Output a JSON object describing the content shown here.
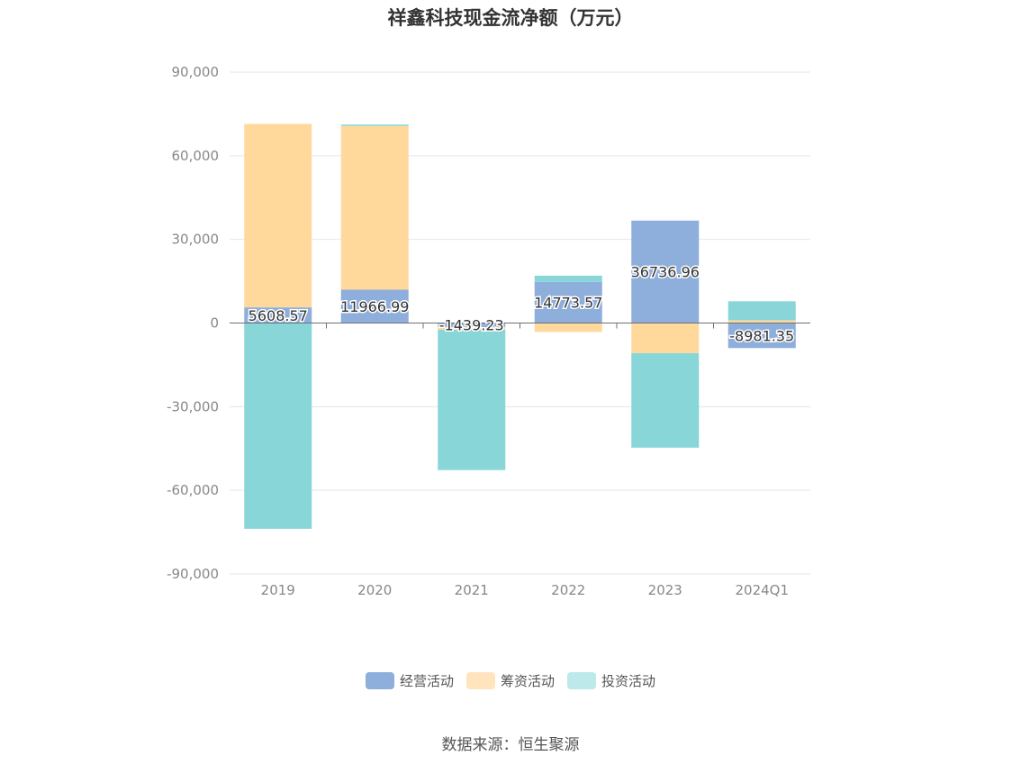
{
  "chart_data": {
    "type": "bar",
    "stacked": true,
    "title": "祥鑫科技现金流净额（万元）",
    "categories": [
      "2019",
      "2020",
      "2021",
      "2022",
      "2023",
      "2024Q1"
    ],
    "series": [
      {
        "name": "经营活动",
        "color": "#8eaedb",
        "values": [
          5608.57,
          11966.99,
          -1439.23,
          14773.57,
          36736.96,
          -8981.35
        ]
      },
      {
        "name": "筹资活动",
        "color": "#ffd99c",
        "values": [
          65800,
          58700,
          -1000,
          -3200,
          -10800,
          1000
        ]
      },
      {
        "name": "投资活动",
        "color": "#88d6d8",
        "values": [
          -73800,
          500,
          -50300,
          2200,
          -33900,
          6800
        ]
      }
    ],
    "data_labels": [
      "5608.57",
      "11966.99",
      "-1439.23",
      "14773.57",
      "36736.96",
      "-8981.35"
    ],
    "ylim": [
      -90000,
      90000
    ],
    "yticks": [
      90000,
      60000,
      30000,
      0,
      -30000,
      -60000,
      -90000
    ],
    "ytick_labels": [
      "90,000",
      "60,000",
      "30,000",
      "0",
      "-30,000",
      "-60,000",
      "-90,000"
    ],
    "legend_position": "bottom",
    "grid": true
  },
  "source_text": "数据来源：恒生聚源"
}
